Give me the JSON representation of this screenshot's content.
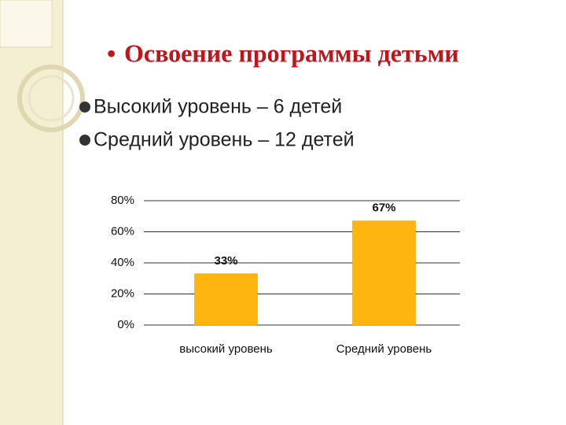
{
  "title": "Освоение программы детьми",
  "bullets": [
    "Высокий уровень – 6 детей",
    "Средний уровень – 12 детей"
  ],
  "chart_data": {
    "type": "bar",
    "categories": [
      "высокий уровень",
      "Средний уровень"
    ],
    "values": [
      33,
      67
    ],
    "value_labels": [
      "33%",
      "67%"
    ],
    "color": "#ffb50f",
    "ylim": [
      0,
      80
    ],
    "yticks": [
      {
        "value": 0,
        "label": "0%"
      },
      {
        "value": 20,
        "label": "20%"
      },
      {
        "value": 40,
        "label": "40%"
      },
      {
        "value": 60,
        "label": "60%"
      },
      {
        "value": 80,
        "label": "80%"
      }
    ],
    "grid": true
  }
}
